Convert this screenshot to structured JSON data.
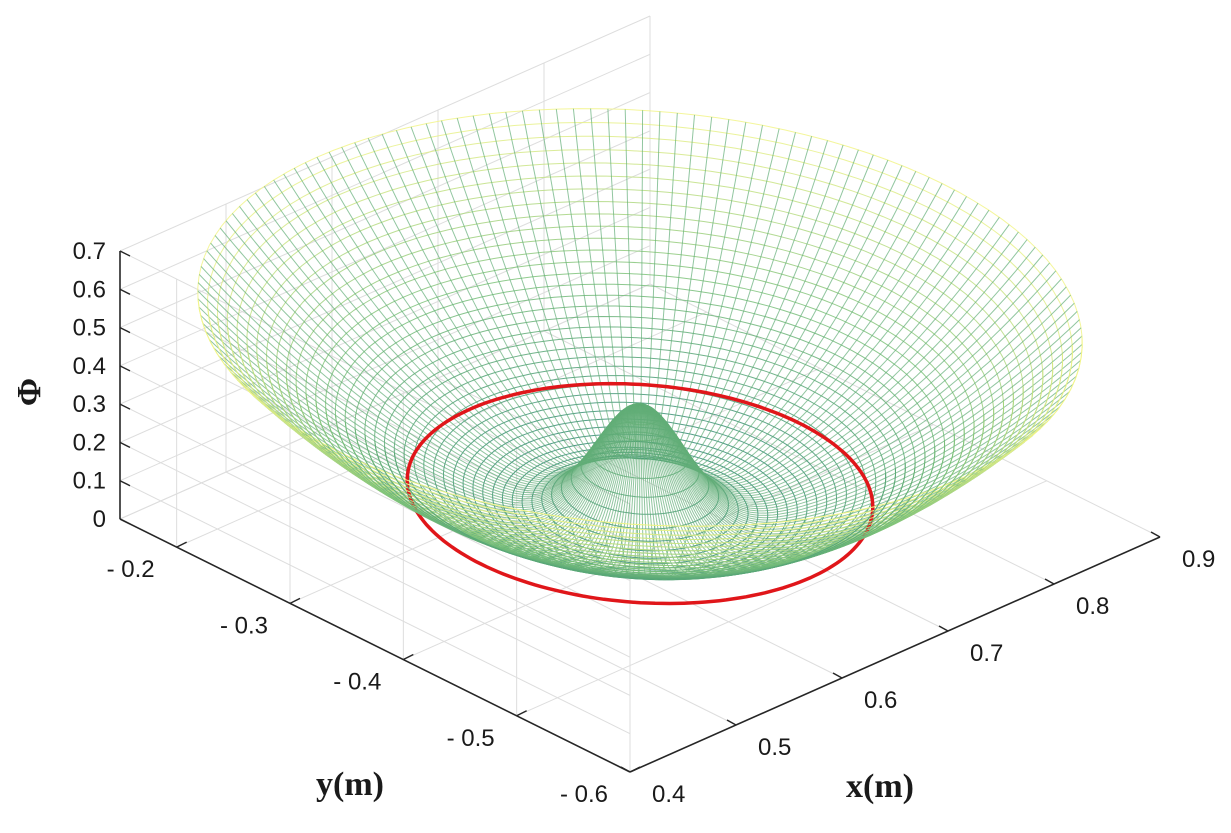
{
  "chart_data": {
    "type": "surface",
    "surface_shape": "bowl with central peak",
    "colormap": "yellow-green",
    "grid": true,
    "xlabel": "x(m)",
    "ylabel": "y(m)",
    "zlabel": "Φ",
    "xlim": [
      0.4,
      0.9
    ],
    "ylim": [
      -0.6,
      -0.15
    ],
    "zlim": [
      0,
      0.7
    ],
    "x_ticks": [
      {
        "value": 0.4,
        "label": "0.4"
      },
      {
        "value": 0.5,
        "label": "0.5"
      },
      {
        "value": 0.6,
        "label": "0.6"
      },
      {
        "value": 0.7,
        "label": "0.7"
      },
      {
        "value": 0.8,
        "label": "0.8"
      },
      {
        "value": 0.9,
        "label": "0.9"
      }
    ],
    "y_ticks": [
      {
        "value": -0.6,
        "label": "- 0.6"
      },
      {
        "value": -0.5,
        "label": "- 0.5"
      },
      {
        "value": -0.4,
        "label": "- 0.4"
      },
      {
        "value": -0.3,
        "label": "- 0.3"
      },
      {
        "value": -0.2,
        "label": "- 0.2"
      }
    ],
    "z_ticks": [
      {
        "value": 0,
        "label": "0"
      },
      {
        "value": 0.1,
        "label": "0.1"
      },
      {
        "value": 0.2,
        "label": "0.2"
      },
      {
        "value": 0.3,
        "label": "0.3"
      },
      {
        "value": 0.4,
        "label": "0.4"
      },
      {
        "value": 0.5,
        "label": "0.5"
      },
      {
        "value": 0.6,
        "label": "0.6"
      },
      {
        "value": 0.7,
        "label": "0.7"
      }
    ],
    "surface": {
      "center": [
        0.65,
        -0.375
      ],
      "outer_radius": 0.285,
      "rim_phi": 0.55,
      "bowl_bottom_phi": 0.0,
      "peak_phi": 0.32,
      "peak_width": 0.03,
      "colors": {
        "high": "#f2f58a",
        "mid": "#7dc27a",
        "low": "#1e7b72"
      }
    },
    "contour": {
      "radius": 0.15,
      "phi": 0.09,
      "color": "#e0161a"
    }
  }
}
